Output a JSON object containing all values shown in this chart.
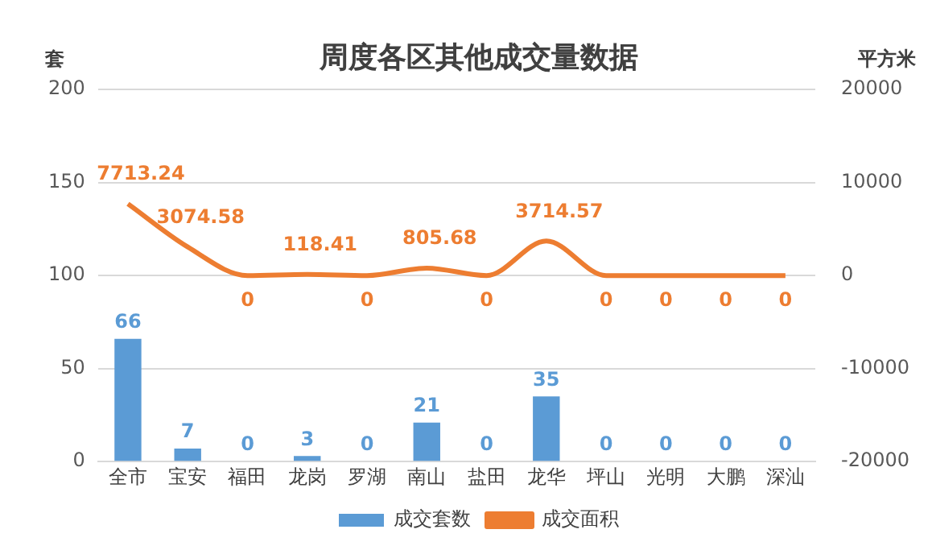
{
  "chart_data": {
    "type": "bar",
    "title": "周度各区其他成交量数据",
    "ylabel": "套",
    "y2label": "平方米",
    "categories": [
      "全市",
      "宝安",
      "福田",
      "龙岗",
      "罗湖",
      "南山",
      "盐田",
      "龙华",
      "坪山",
      "光明",
      "大鹏",
      "深汕"
    ],
    "series": [
      {
        "name": "成交套数",
        "color": "#5b9bd5",
        "values": [
          66,
          7,
          0,
          3,
          0,
          21,
          0,
          35,
          0,
          0,
          0,
          0
        ]
      },
      {
        "name": "成交面积",
        "type": "line",
        "axis": "y2",
        "color": "#ed7d31",
        "values": [
          7713.24,
          3074.58,
          0,
          118.41,
          0,
          805.68,
          0,
          3714.57,
          0,
          0,
          0,
          0
        ]
      }
    ],
    "ylim": [
      0,
      200
    ],
    "yticks": [
      0,
      50,
      100,
      150,
      200
    ],
    "y2lim": [
      -20000,
      20000
    ],
    "y2ticks": [
      -20000,
      -10000,
      0,
      10000,
      20000
    ],
    "grid": "y",
    "legend": "bottom",
    "data_labels": true,
    "marker": "none",
    "line_style": "solid"
  }
}
